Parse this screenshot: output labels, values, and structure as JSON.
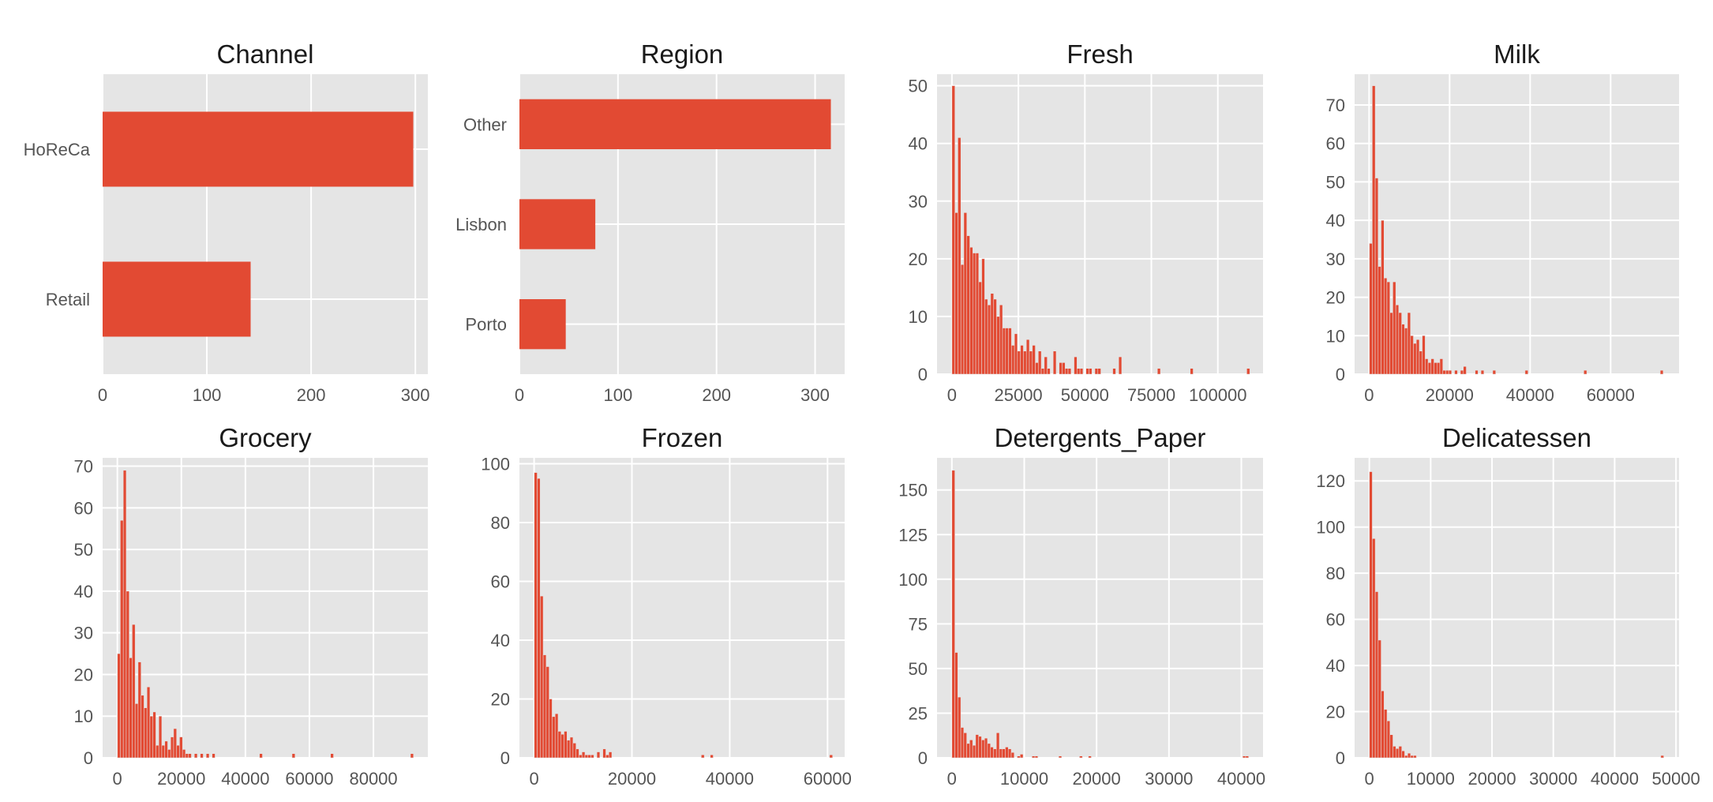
{
  "chart_data": [
    {
      "type": "bar",
      "orientation": "horizontal",
      "title": "Channel",
      "categories": [
        "HoReCa",
        "Retail"
      ],
      "values": [
        298,
        142
      ],
      "xlim": [
        0,
        312
      ],
      "xticks": [
        0,
        100,
        200,
        300
      ],
      "bar_color": "#E24A33",
      "grid": true
    },
    {
      "type": "bar",
      "orientation": "horizontal",
      "title": "Region",
      "categories": [
        "Other",
        "Lisbon",
        "Porto"
      ],
      "values": [
        316,
        77,
        47
      ],
      "xlim": [
        0,
        330
      ],
      "xticks": [
        0,
        100,
        200,
        300
      ],
      "bar_color": "#E24A33",
      "grid": true
    },
    {
      "type": "bar",
      "subtype": "histogram",
      "title": "Fresh",
      "bin_start": 3,
      "bin_width": 1120,
      "counts": [
        50,
        28,
        41,
        19,
        28,
        24,
        22,
        21,
        21,
        16,
        20,
        13,
        12,
        14,
        13,
        10,
        12,
        8,
        8,
        8,
        5,
        7,
        4,
        5,
        4,
        6,
        4,
        5,
        2,
        4,
        1,
        3,
        1,
        0,
        4,
        0,
        2,
        2,
        1,
        1,
        0,
        3,
        1,
        1,
        0,
        1,
        1,
        0,
        1,
        1,
        0,
        0,
        0,
        0,
        1,
        0,
        3,
        0,
        0,
        0,
        0,
        0,
        0,
        0,
        0,
        0,
        0,
        0,
        0,
        1,
        0,
        0,
        0,
        0,
        0,
        0,
        0,
        0,
        0,
        0,
        1,
        0,
        0,
        0,
        0,
        0,
        0,
        0,
        0,
        0,
        0,
        0,
        0,
        0,
        0,
        0,
        0,
        0,
        0,
        1
      ],
      "xlim": [
        -5600,
        117000
      ],
      "ylim": [
        0,
        52
      ],
      "xticks": [
        0,
        25000,
        50000,
        75000,
        100000
      ],
      "yticks": [
        0,
        10,
        20,
        30,
        40,
        50
      ],
      "bar_color": "#E24A33",
      "grid": true
    },
    {
      "type": "bar",
      "subtype": "histogram",
      "title": "Milk",
      "bin_start": 55,
      "bin_width": 730,
      "counts": [
        34,
        75,
        51,
        28,
        40,
        25,
        24,
        16,
        24,
        18,
        16,
        13,
        12,
        16,
        10,
        8,
        9,
        6,
        10,
        4,
        3,
        4,
        3,
        3,
        4,
        1,
        1,
        1,
        0,
        1,
        0,
        1,
        2,
        0,
        0,
        0,
        1,
        0,
        1,
        0,
        0,
        0,
        1,
        0,
        0,
        0,
        0,
        0,
        0,
        0,
        0,
        0,
        0,
        1,
        0,
        0,
        0,
        0,
        0,
        0,
        0,
        0,
        0,
        0,
        0,
        0,
        0,
        0,
        0,
        0,
        0,
        0,
        0,
        1,
        0,
        0,
        0,
        0,
        0,
        0,
        0,
        0,
        0,
        0,
        0,
        0,
        0,
        0,
        0,
        0,
        0,
        0,
        0,
        0,
        0,
        0,
        0,
        0,
        0,
        1
      ],
      "xlim": [
        -3600,
        77000
      ],
      "ylim": [
        0,
        78
      ],
      "xticks": [
        0,
        20000,
        40000,
        60000
      ],
      "yticks": [
        0,
        10,
        20,
        30,
        40,
        50,
        60,
        70
      ],
      "bar_color": "#E24A33",
      "grid": true
    },
    {
      "type": "bar",
      "subtype": "histogram",
      "title": "Grocery",
      "bin_start": 3,
      "bin_width": 925,
      "counts": [
        25,
        57,
        69,
        40,
        24,
        32,
        13,
        23,
        15,
        12,
        17,
        10,
        11,
        3,
        10,
        3,
        4,
        2,
        5,
        7,
        3,
        5,
        2,
        1,
        1,
        0,
        1,
        0,
        1,
        0,
        1,
        0,
        1,
        0,
        0,
        0,
        0,
        0,
        0,
        0,
        0,
        0,
        0,
        0,
        0,
        0,
        0,
        0,
        1,
        0,
        0,
        0,
        0,
        0,
        0,
        0,
        0,
        0,
        0,
        1,
        0,
        0,
        0,
        0,
        0,
        0,
        0,
        0,
        0,
        0,
        0,
        0,
        1,
        0,
        0,
        0,
        0,
        0,
        0,
        0,
        0,
        0,
        0,
        0,
        0,
        0,
        0,
        0,
        0,
        0,
        0,
        0,
        0,
        0,
        0,
        0,
        0,
        0,
        0,
        1
      ],
      "xlim": [
        -4600,
        97000
      ],
      "ylim": [
        0,
        72
      ],
      "xticks": [
        0,
        20000,
        40000,
        60000,
        80000
      ],
      "yticks": [
        0,
        10,
        20,
        30,
        40,
        50,
        60,
        70
      ],
      "bar_color": "#E24A33",
      "grid": true
    },
    {
      "type": "bar",
      "subtype": "histogram",
      "title": "Frozen",
      "bin_start": 25,
      "bin_width": 610,
      "counts": [
        97,
        95,
        55,
        35,
        31,
        20,
        14,
        15,
        9,
        8,
        9,
        6,
        7,
        5,
        3,
        1,
        2,
        1,
        1,
        1,
        0,
        2,
        0,
        3,
        1,
        2,
        0,
        0,
        0,
        0,
        0,
        0,
        0,
        0,
        0,
        0,
        0,
        0,
        0,
        0,
        0,
        0,
        0,
        0,
        0,
        0,
        0,
        0,
        0,
        0,
        0,
        0,
        0,
        0,
        0,
        0,
        1,
        0,
        0,
        1,
        0,
        0,
        0,
        0,
        0,
        0,
        0,
        0,
        0,
        0,
        0,
        0,
        0,
        0,
        0,
        0,
        0,
        0,
        0,
        0,
        0,
        0,
        0,
        0,
        0,
        0,
        0,
        0,
        0,
        0,
        0,
        0,
        0,
        0,
        0,
        0,
        0,
        0,
        0,
        1
      ],
      "xlim": [
        -3000,
        63500
      ],
      "ylim": [
        0,
        102
      ],
      "xticks": [
        0,
        20000,
        40000,
        60000
      ],
      "yticks": [
        0,
        20,
        40,
        60,
        80,
        100
      ],
      "bar_color": "#E24A33",
      "grid": true
    },
    {
      "type": "bar",
      "subtype": "histogram",
      "title": "Detergents_Paper",
      "bin_start": 3,
      "bin_width": 410,
      "counts": [
        161,
        59,
        34,
        17,
        14,
        8,
        10,
        7,
        13,
        12,
        10,
        11,
        8,
        6,
        5,
        14,
        5,
        5,
        6,
        5,
        3,
        0,
        1,
        2,
        0,
        0,
        0,
        1,
        1,
        0,
        0,
        0,
        0,
        0,
        0,
        0,
        1,
        0,
        0,
        0,
        0,
        0,
        0,
        1,
        0,
        0,
        1,
        0,
        0,
        0,
        0,
        0,
        0,
        0,
        0,
        0,
        0,
        0,
        0,
        0,
        0,
        0,
        0,
        0,
        0,
        0,
        0,
        0,
        0,
        0,
        0,
        0,
        0,
        0,
        0,
        0,
        0,
        0,
        0,
        0,
        0,
        0,
        0,
        0,
        0,
        0,
        0,
        0,
        0,
        0,
        0,
        0,
        0,
        0,
        0,
        0,
        0,
        0,
        1,
        1
      ],
      "xlim": [
        -2050,
        43000
      ],
      "ylim": [
        0,
        168
      ],
      "xticks": [
        0,
        10000,
        20000,
        30000,
        40000
      ],
      "yticks": [
        0,
        25,
        50,
        75,
        100,
        125,
        150
      ],
      "bar_color": "#E24A33",
      "grid": true
    },
    {
      "type": "bar",
      "subtype": "histogram",
      "title": "Delicatessen",
      "bin_start": 3,
      "bin_width": 480,
      "counts": [
        124,
        95,
        72,
        51,
        29,
        21,
        16,
        10,
        5,
        4,
        5,
        3,
        1,
        2,
        1,
        1,
        0,
        0,
        0,
        0,
        0,
        0,
        0,
        0,
        0,
        0,
        0,
        0,
        0,
        0,
        0,
        0,
        0,
        0,
        0,
        0,
        0,
        0,
        0,
        0,
        0,
        0,
        0,
        0,
        0,
        0,
        0,
        0,
        0,
        0,
        0,
        0,
        0,
        0,
        0,
        0,
        0,
        0,
        0,
        0,
        0,
        0,
        0,
        0,
        0,
        0,
        0,
        0,
        0,
        0,
        0,
        0,
        0,
        0,
        0,
        0,
        0,
        0,
        0,
        0,
        0,
        0,
        0,
        0,
        0,
        0,
        0,
        0,
        0,
        0,
        0,
        0,
        0,
        0,
        0,
        0,
        0,
        0,
        0,
        1
      ],
      "xlim": [
        -2400,
        50500
      ],
      "ylim": [
        0,
        130
      ],
      "xticks": [
        0,
        10000,
        20000,
        30000,
        40000,
        50000
      ],
      "yticks": [
        0,
        20,
        40,
        60,
        80,
        100,
        120
      ],
      "bar_color": "#E24A33",
      "grid": true
    }
  ]
}
